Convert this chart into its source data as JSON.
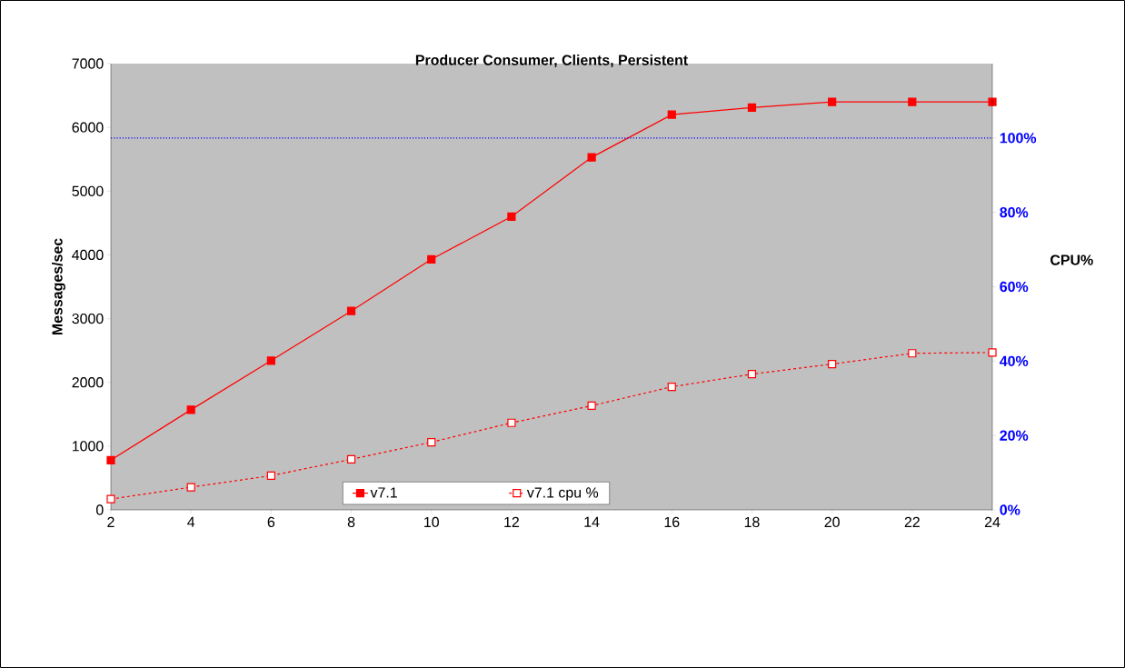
{
  "chart_data": {
    "type": "line",
    "title": "Producer Consumer, Clients, Persistent",
    "ylabel": "Messages/sec",
    "y2label": "CPU%",
    "x": [
      2,
      4,
      6,
      8,
      10,
      12,
      14,
      16,
      18,
      20,
      22,
      24
    ],
    "xlim": [
      2,
      24
    ],
    "xticks": [
      2,
      4,
      6,
      8,
      10,
      12,
      14,
      16,
      18,
      20,
      22,
      24
    ],
    "ylim": [
      0,
      7000
    ],
    "yticks": [
      0,
      1000,
      2000,
      3000,
      4000,
      5000,
      6000,
      7000
    ],
    "y2lim": [
      0,
      120
    ],
    "y2ticks": [
      {
        "value": 0,
        "label": "0%"
      },
      {
        "value": 20,
        "label": "20%"
      },
      {
        "value": 40,
        "label": "40%"
      },
      {
        "value": 60,
        "label": "60%"
      },
      {
        "value": 80,
        "label": "80%"
      },
      {
        "value": 100,
        "label": "100%"
      }
    ],
    "marker": "square",
    "legend": "bottom",
    "grid": false,
    "series": [
      {
        "name": "v7.1",
        "color": "#ff0000",
        "line_style": "solid",
        "values": [
          780,
          1570,
          2340,
          3120,
          3930,
          4600,
          5530,
          6200,
          6310,
          6400,
          6400,
          6400
        ]
      },
      {
        "name": "v7.1 cpu %",
        "color": "#ff0000",
        "line_style": "dashed",
        "axis": "y2",
        "values": [
          2.9,
          6.1,
          9.2,
          13.6,
          18.2,
          23.4,
          28,
          33.1,
          36.5,
          39.2,
          42.1,
          42.3
        ]
      }
    ],
    "ref_lines": [
      {
        "axis": "y2",
        "value": 100,
        "color": "#0000ff",
        "line_style": "dotted"
      }
    ]
  }
}
